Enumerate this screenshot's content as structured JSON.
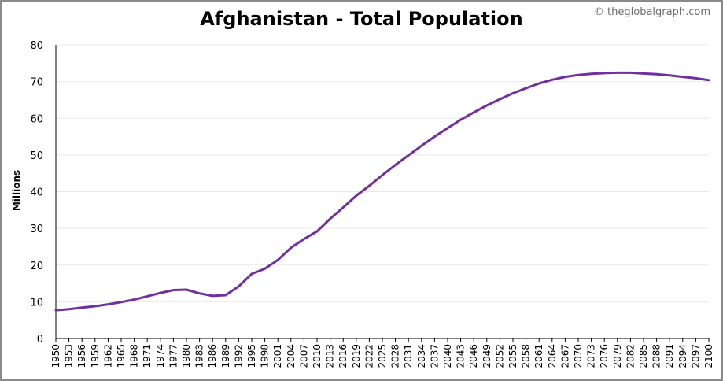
{
  "title": "Afghanistan - Total Population",
  "credit": "© theglobalgraph.com",
  "colors": {
    "series": "#7030a0",
    "grid": "#e9e9e9",
    "axis": "#000000"
  },
  "chart_data": {
    "type": "line",
    "title": "Afghanistan - Total Population",
    "xlabel": "",
    "ylabel": "Millions",
    "xlim": [
      1950,
      2100
    ],
    "ylim": [
      0,
      80
    ],
    "yticks": [
      0,
      10,
      20,
      30,
      40,
      50,
      60,
      70,
      80
    ],
    "xticks": [
      1950,
      1953,
      1956,
      1959,
      1962,
      1965,
      1968,
      1971,
      1974,
      1977,
      1980,
      1983,
      1986,
      1989,
      1992,
      1995,
      1998,
      2001,
      2004,
      2007,
      2010,
      2013,
      2016,
      2019,
      2022,
      2025,
      2028,
      2031,
      2034,
      2037,
      2040,
      2043,
      2046,
      2049,
      2052,
      2055,
      2058,
      2061,
      2064,
      2067,
      2070,
      2073,
      2076,
      2079,
      2082,
      2085,
      2088,
      2091,
      2094,
      2097,
      2100
    ],
    "grid": true,
    "legend": "none",
    "series": [
      {
        "x": [
          1950,
          1953,
          1956,
          1959,
          1962,
          1965,
          1968,
          1971,
          1974,
          1977,
          1980,
          1983,
          1986,
          1989,
          1992,
          1995,
          1998,
          2001,
          2004,
          2007,
          2010,
          2013,
          2016,
          2019,
          2022,
          2025,
          2028,
          2031,
          2034,
          2037,
          2040,
          2043,
          2046,
          2049,
          2052,
          2055,
          2058,
          2061,
          2064,
          2067,
          2070,
          2073,
          2076,
          2079,
          2082,
          2085,
          2088,
          2091,
          2094,
          2097,
          2100
        ],
        "y": [
          7.7,
          8.0,
          8.4,
          8.8,
          9.3,
          9.9,
          10.6,
          11.5,
          12.4,
          13.2,
          13.3,
          12.3,
          11.6,
          11.8,
          14.2,
          17.6,
          19.0,
          21.4,
          24.7,
          27.1,
          29.2,
          32.6,
          35.7,
          38.9,
          41.6,
          44.5,
          47.3,
          49.9,
          52.5,
          55.0,
          57.3,
          59.6,
          61.6,
          63.5,
          65.2,
          66.8,
          68.2,
          69.5,
          70.5,
          71.3,
          71.8,
          72.1,
          72.3,
          72.4,
          72.4,
          72.2,
          72.0,
          71.7,
          71.3,
          70.9,
          70.4
        ]
      }
    ]
  }
}
